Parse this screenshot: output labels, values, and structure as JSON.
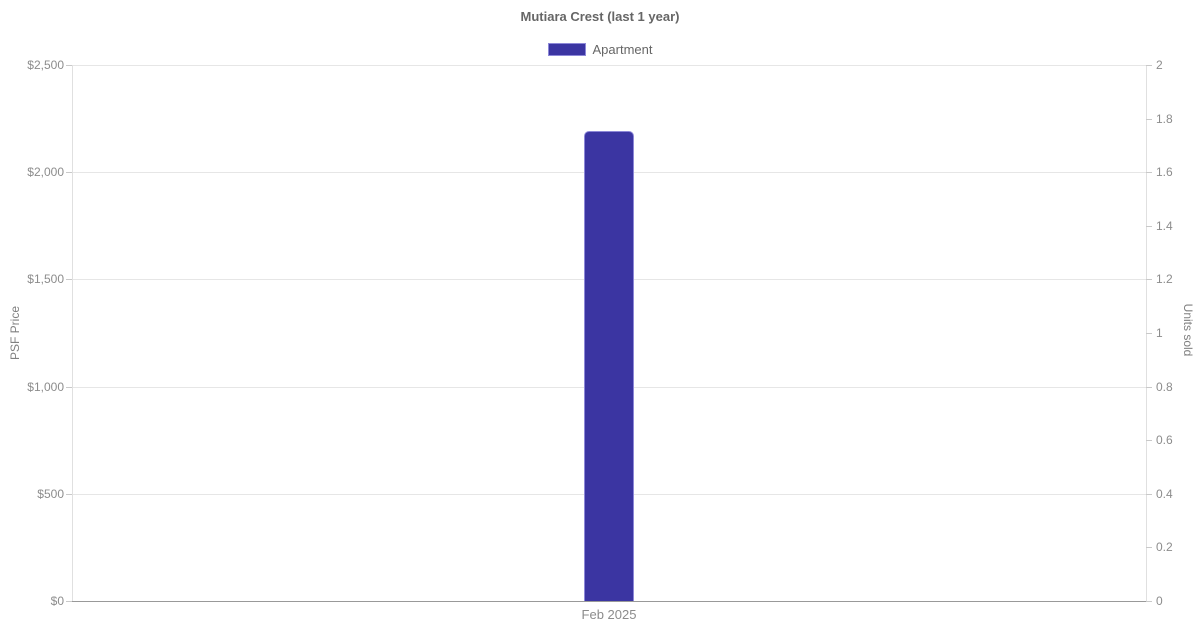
{
  "page": {
    "background": "#ffffff"
  },
  "chart_data": {
    "type": "bar",
    "title": "Mutiara Crest (last 1 year)",
    "categories": [
      "Feb 2025"
    ],
    "series": [
      {
        "name": "Apartment",
        "axis": "left",
        "values": [
          2190
        ],
        "color": "#3b35a2",
        "border_color": "#8d88d8"
      }
    ],
    "legend_position": "top",
    "y_left": {
      "label": "PSF Price",
      "range": [
        0,
        2500
      ],
      "tick_values": [
        0,
        500,
        1000,
        1500,
        2000,
        2500
      ],
      "tick_labels": [
        "$0",
        "$500",
        "$1,000",
        "$1,500",
        "$2,000",
        "$2,500"
      ]
    },
    "y_right": {
      "label": "Units sold",
      "range": [
        0,
        2
      ],
      "tick_values": [
        0,
        0.2,
        0.4,
        0.6,
        0.8,
        1,
        1.2,
        1.4,
        1.6,
        1.8,
        2
      ],
      "tick_labels": [
        "0",
        "0.2",
        "0.4",
        "0.6",
        "0.8",
        "1",
        "1.2",
        "1.4",
        "1.6",
        "1.8",
        "2"
      ]
    },
    "grid": true,
    "colors": {
      "grid": "#e6e6e6",
      "axis_line": "#e0e0e0",
      "baseline": "#999999",
      "tick": "#c9c9c9",
      "tick_label": "#8c8c8c",
      "title": "#666666"
    }
  }
}
